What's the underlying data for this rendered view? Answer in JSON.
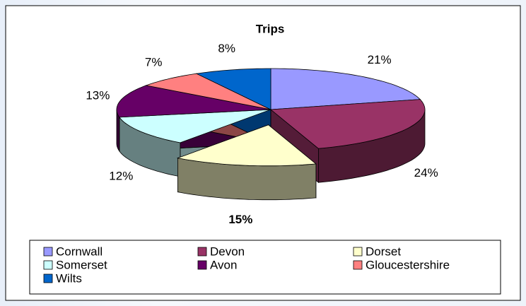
{
  "chart_data": {
    "type": "pie3d",
    "title": "Trips",
    "categories": [
      "Cornwall",
      "Devon",
      "Dorset",
      "Somerset",
      "Avon",
      "Gloucestershire",
      "Wilts"
    ],
    "values": [
      21,
      24,
      15,
      12,
      13,
      7,
      8
    ],
    "value_labels": [
      "21%",
      "24%",
      "15%",
      "12%",
      "13%",
      "7%",
      "8%"
    ],
    "colors": [
      "#9999ff",
      "#993366",
      "#ffffcc",
      "#ccffff",
      "#660066",
      "#ff8080",
      "#0066cc"
    ],
    "explode": [
      0,
      0,
      1,
      0,
      0,
      0,
      0
    ],
    "bold_labels": [
      false,
      false,
      true,
      false,
      false,
      false,
      false
    ],
    "legend": "bottom"
  }
}
